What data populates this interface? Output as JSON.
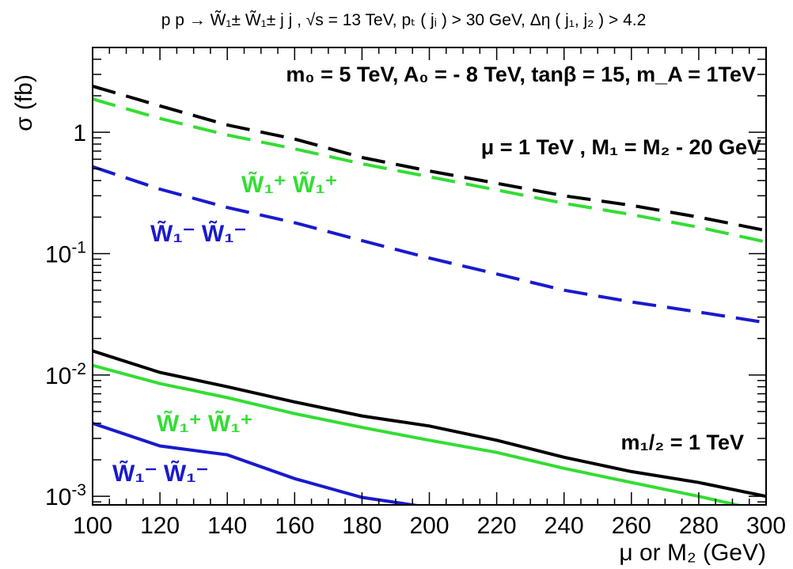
{
  "chart_data": {
    "type": "line",
    "title": "p p → W̃₁± W̃₁± j j , √s = 13 TeV, pₜ ( jᵢ ) > 30 GeV, Δη ( j₁, j₂ ) > 4.2",
    "xlabel": "μ or M₂ (GeV)",
    "ylabel": "σ (fb)",
    "xlim": [
      100,
      300
    ],
    "ylim": [
      0.00085,
      5
    ],
    "yscale": "log",
    "grid": false,
    "x_tick_labels": [
      "100",
      "120",
      "140",
      "160",
      "180",
      "200",
      "220",
      "240",
      "260",
      "280",
      "300"
    ],
    "y_tick_labels": [
      {
        "mantissa": "10",
        "exp": "-3"
      },
      {
        "mantissa": "10",
        "exp": "-2"
      },
      {
        "mantissa": "10",
        "exp": "-1"
      },
      {
        "mantissa": "1",
        "exp": ""
      }
    ],
    "x": [
      100,
      120,
      140,
      160,
      180,
      200,
      220,
      240,
      260,
      280,
      300
    ],
    "series": [
      {
        "group": "mu",
        "color": "#000000",
        "dash": "dashed",
        "values": [
          2.4,
          1.65,
          1.15,
          0.88,
          0.62,
          0.48,
          0.38,
          0.3,
          0.25,
          0.2,
          0.155
        ]
      },
      {
        "group": "mu",
        "color": "#33dd33",
        "dash": "dashed",
        "values": [
          1.88,
          1.3,
          0.95,
          0.73,
          0.55,
          0.43,
          0.335,
          0.26,
          0.21,
          0.165,
          0.125
        ]
      },
      {
        "group": "mu",
        "color": "#1a1acc",
        "dash": "dashed",
        "values": [
          0.52,
          0.34,
          0.24,
          0.18,
          0.128,
          0.092,
          0.068,
          0.05,
          0.04,
          0.033,
          0.027
        ]
      },
      {
        "group": "m12",
        "color": "#000000",
        "dash": "solid",
        "values": [
          0.0158,
          0.0105,
          0.008,
          0.006,
          0.0046,
          0.0038,
          0.0029,
          0.0021,
          0.0016,
          0.0013,
          0.001
        ]
      },
      {
        "group": "m12",
        "color": "#33dd33",
        "dash": "solid",
        "values": [
          0.012,
          0.0085,
          0.0065,
          0.0048,
          0.0037,
          0.0029,
          0.0023,
          0.0017,
          0.0013,
          0.001,
          0.00075
        ]
      },
      {
        "group": "m12",
        "color": "#1a1acc",
        "dash": "solid",
        "values": [
          0.004,
          0.0026,
          0.0022,
          0.0014,
          0.00098,
          0.00081,
          0.0007,
          null,
          null,
          null,
          null
        ]
      }
    ],
    "annotations": {
      "params": "m₀ = 5 TeV, A₀ = - 8 TeV, tanβ = 15, m_A = 1TeV",
      "mu_group": "μ = 1 TeV , M₁ = M₂ - 20 GeV",
      "m12_group": "m₁/₂ = 1 TeV",
      "wp_upper": "W̃₁⁺ W̃₁⁺",
      "wm_upper": "W̃₁⁻ W̃₁⁻",
      "wp_lower": "W̃₁⁺ W̃₁⁺",
      "wm_lower": "W̃₁⁻ W̃₁⁻"
    }
  }
}
